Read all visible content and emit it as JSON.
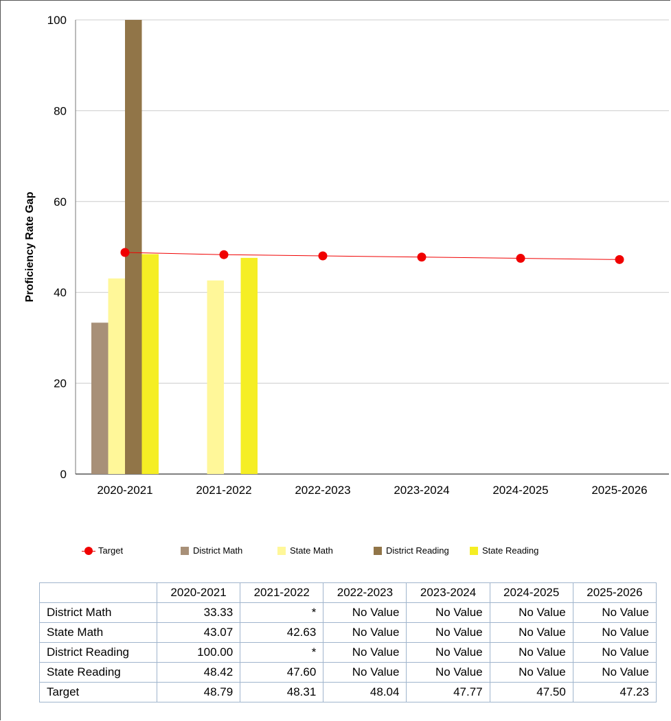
{
  "chart_data": {
    "type": "bar",
    "ylabel": "Proficiency Rate Gap",
    "xlabel": "",
    "ylim": [
      0,
      100
    ],
    "yticks": [
      0,
      20,
      40,
      60,
      80,
      100
    ],
    "grid": true,
    "legend_position": "bottom",
    "categories": [
      "2020-2021",
      "2021-2022",
      "2022-2023",
      "2023-2024",
      "2024-2025",
      "2025-2026"
    ],
    "series": [
      {
        "name": "District Math",
        "kind": "bar",
        "color": "#a89078",
        "values": [
          33.33,
          null,
          null,
          null,
          null,
          null
        ]
      },
      {
        "name": "State Math",
        "kind": "bar",
        "color": "#fff799",
        "values": [
          43.07,
          42.63,
          null,
          null,
          null,
          null
        ]
      },
      {
        "name": "District Reading",
        "kind": "bar",
        "color": "#917548",
        "values": [
          100.0,
          null,
          null,
          null,
          null,
          null
        ]
      },
      {
        "name": "State Reading",
        "kind": "bar",
        "color": "#f5ee24",
        "values": [
          48.42,
          47.6,
          null,
          null,
          null,
          null
        ]
      },
      {
        "name": "Target",
        "kind": "line",
        "color": "#f00000",
        "values": [
          48.79,
          48.31,
          48.04,
          47.77,
          47.5,
          47.23
        ]
      }
    ]
  },
  "legend": [
    {
      "label": "Target",
      "color": "#f00000",
      "kind": "line"
    },
    {
      "label": "District Math",
      "color": "#a89078",
      "kind": "bar"
    },
    {
      "label": "State Math",
      "color": "#fff799",
      "kind": "bar"
    },
    {
      "label": "District Reading",
      "color": "#917548",
      "kind": "bar"
    },
    {
      "label": "State Reading",
      "color": "#f5ee24",
      "kind": "bar"
    }
  ],
  "table": {
    "headers": [
      "2020-2021",
      "2021-2022",
      "2022-2023",
      "2023-2024",
      "2024-2025",
      "2025-2026"
    ],
    "rows": [
      {
        "label": "District Math",
        "cells": [
          "33.33",
          "*",
          "No Value",
          "No Value",
          "No Value",
          "No Value"
        ]
      },
      {
        "label": "State Math",
        "cells": [
          "43.07",
          "42.63",
          "No Value",
          "No Value",
          "No Value",
          "No Value"
        ]
      },
      {
        "label": "District Reading",
        "cells": [
          "100.00",
          "*",
          "No Value",
          "No Value",
          "No Value",
          "No Value"
        ]
      },
      {
        "label": "State Reading",
        "cells": [
          "48.42",
          "47.60",
          "No Value",
          "No Value",
          "No Value",
          "No Value"
        ]
      },
      {
        "label": "Target",
        "cells": [
          "48.79",
          "48.31",
          "48.04",
          "47.77",
          "47.50",
          "47.23"
        ]
      }
    ]
  }
}
